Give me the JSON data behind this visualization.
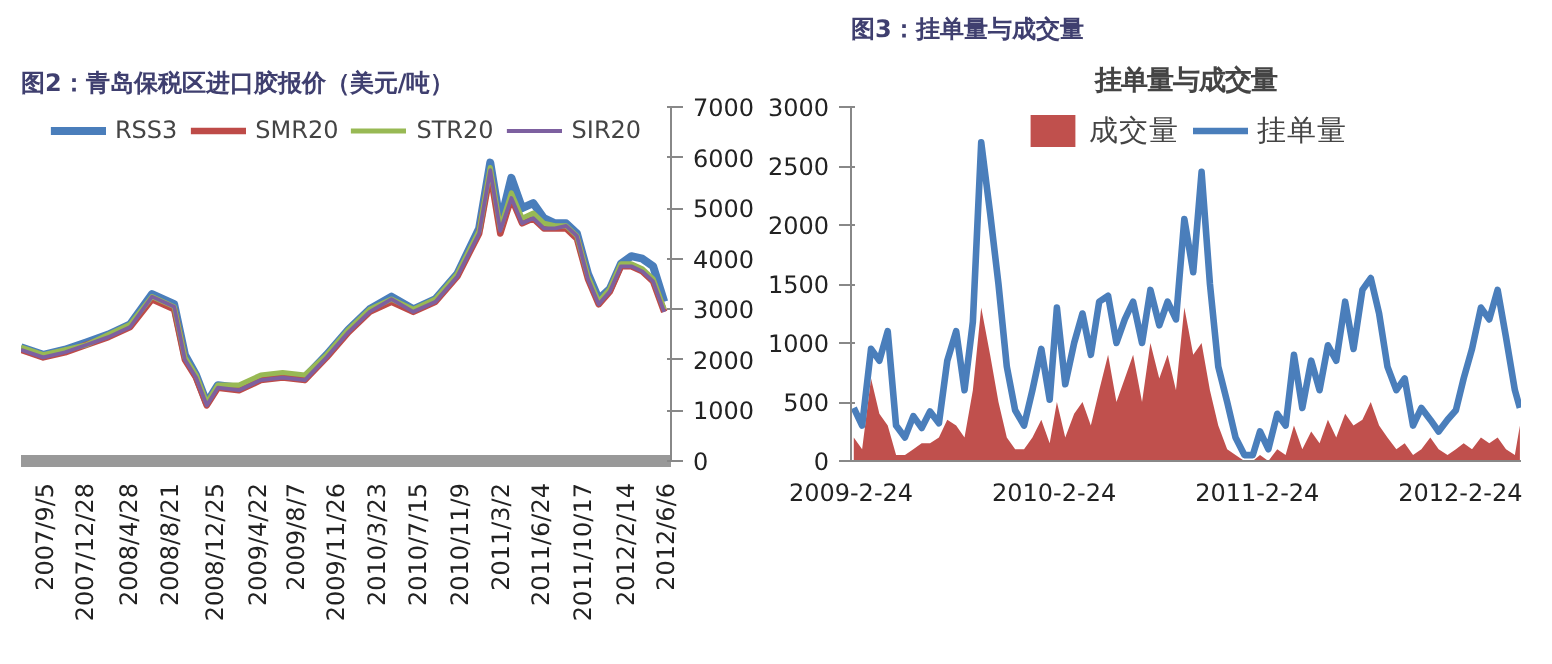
{
  "chart_data": [
    {
      "type": "line",
      "title": "图2：青岛保税区进口胶报价（美元/吨）",
      "legend": "top",
      "grid": false,
      "x": [
        "2007-07-01",
        "2007-09-01",
        "2007-11-01",
        "2008-01-01",
        "2008-03-01",
        "2008-05-01",
        "2008-07-01",
        "2008-09-01",
        "2008-10-01",
        "2008-11-01",
        "2008-12-01",
        "2009-01-01",
        "2009-03-01",
        "2009-05-01",
        "2009-07-01",
        "2009-09-01",
        "2009-11-01",
        "2010-01-01",
        "2010-03-01",
        "2010-05-01",
        "2010-07-01",
        "2010-09-01",
        "2010-11-01",
        "2011-01-01",
        "2011-02-01",
        "2011-03-01",
        "2011-04-01",
        "2011-05-01",
        "2011-06-01",
        "2011-07-01",
        "2011-08-01",
        "2011-09-01",
        "2011-10-01",
        "2011-11-01",
        "2011-12-01",
        "2012-01-01",
        "2012-02-01",
        "2012-03-01",
        "2012-04-01",
        "2012-05-01",
        "2012-06-01"
      ],
      "series": [
        {
          "name": "RSS3",
          "color": "#4a7ebb",
          "values": [
            2250,
            2100,
            2200,
            2350,
            2500,
            2700,
            3300,
            3100,
            2100,
            1700,
            1150,
            1500,
            1450,
            1650,
            1700,
            1650,
            2100,
            2600,
            3000,
            3250,
            3000,
            3200,
            3700,
            4600,
            5900,
            4700,
            5600,
            5000,
            5100,
            4800,
            4700,
            4700,
            4500,
            3700,
            3200,
            3400,
            3900,
            4050,
            4000,
            3850,
            3150
          ]
        },
        {
          "name": "SMR20",
          "color": "#be4b48",
          "values": [
            2200,
            2050,
            2150,
            2300,
            2450,
            2650,
            3200,
            3000,
            2000,
            1650,
            1100,
            1450,
            1400,
            1600,
            1650,
            1600,
            2050,
            2550,
            2950,
            3150,
            2950,
            3150,
            3650,
            4500,
            5700,
            4500,
            5200,
            4700,
            4800,
            4600,
            4600,
            4600,
            4400,
            3600,
            3100,
            3350,
            3850,
            3850,
            3750,
            3550,
            2950
          ]
        },
        {
          "name": "STR20",
          "color": "#98b954",
          "values": [
            2250,
            2100,
            2200,
            2300,
            2500,
            2700,
            3250,
            3050,
            2050,
            1700,
            1150,
            1500,
            1500,
            1700,
            1750,
            1700,
            2100,
            2600,
            3000,
            3200,
            3000,
            3200,
            3700,
            4550,
            5800,
            4600,
            5300,
            4800,
            4900,
            4700,
            4650,
            4650,
            4450,
            3650,
            3150,
            3400,
            3900,
            3900,
            3800,
            3600,
            3000
          ]
        },
        {
          "name": "SIR20",
          "color": "#7d60a0",
          "values": [
            2200,
            2050,
            2150,
            2300,
            2450,
            2650,
            3250,
            3050,
            2000,
            1650,
            1100,
            1450,
            1400,
            1600,
            1650,
            1600,
            2050,
            2550,
            2950,
            3200,
            2950,
            3150,
            3650,
            4500,
            5750,
            4550,
            5200,
            4700,
            4800,
            4600,
            4600,
            4650,
            4450,
            3600,
            3100,
            3350,
            3850,
            3850,
            3750,
            3550,
            2950
          ]
        }
      ],
      "xlim": [
        "2007-07-01",
        "2012-06-20"
      ],
      "ylim": [
        0,
        7000
      ],
      "yticks": [
        0,
        1000,
        2000,
        3000,
        4000,
        5000,
        6000,
        7000
      ],
      "xticks": [
        {
          "value": "2007-09-05",
          "label": "2007/9/5"
        },
        {
          "value": "2007-12-28",
          "label": "2007/12/28"
        },
        {
          "value": "2008-04-28",
          "label": "2008/4/28"
        },
        {
          "value": "2008-08-21",
          "label": "2008/8/21"
        },
        {
          "value": "2008-12-25",
          "label": "2008/12/25"
        },
        {
          "value": "2009-04-22",
          "label": "2009/4/22"
        },
        {
          "value": "2009-08-07",
          "label": "2009/8/7"
        },
        {
          "value": "2009-11-26",
          "label": "2009/11/26"
        },
        {
          "value": "2010-03-23",
          "label": "2010/3/23"
        },
        {
          "value": "2010-07-15",
          "label": "2010/7/15"
        },
        {
          "value": "2010-11-09",
          "label": "2010/11/9"
        },
        {
          "value": "2011-03-02",
          "label": "2011/3/2"
        },
        {
          "value": "2011-06-24",
          "label": "2011/6/24"
        },
        {
          "value": "2011-10-17",
          "label": "2011/10/17"
        },
        {
          "value": "2012-02-14",
          "label": "2012/2/14"
        },
        {
          "value": "2012-06-06",
          "label": "2012/6/6"
        }
      ]
    },
    {
      "type": "line",
      "title": "图3：挂单量与成交量",
      "subtitle": "挂单量与成交量",
      "legend": "top",
      "grid": false,
      "x": [
        "2009-03-01",
        "2009-03-16",
        "2009-04-01",
        "2009-04-16",
        "2009-05-01",
        "2009-05-16",
        "2009-06-01",
        "2009-06-16",
        "2009-07-01",
        "2009-07-16",
        "2009-08-01",
        "2009-08-16",
        "2009-09-01",
        "2009-09-16",
        "2009-10-01",
        "2009-10-16",
        "2009-11-01",
        "2009-11-16",
        "2009-12-01",
        "2009-12-16",
        "2010-01-01",
        "2010-01-16",
        "2010-02-01",
        "2010-02-16",
        "2010-03-01",
        "2010-03-16",
        "2010-04-01",
        "2010-04-16",
        "2010-05-01",
        "2010-05-16",
        "2010-06-01",
        "2010-06-16",
        "2010-07-01",
        "2010-07-16",
        "2010-08-01",
        "2010-08-16",
        "2010-09-01",
        "2010-09-16",
        "2010-10-01",
        "2010-10-16",
        "2010-11-01",
        "2010-11-16",
        "2010-12-01",
        "2010-12-16",
        "2011-01-01",
        "2011-01-16",
        "2011-02-01",
        "2011-02-16",
        "2011-03-01",
        "2011-03-16",
        "2011-04-01",
        "2011-04-16",
        "2011-05-01",
        "2011-05-16",
        "2011-06-01",
        "2011-06-16",
        "2011-07-01",
        "2011-07-16",
        "2011-08-01",
        "2011-08-16",
        "2011-09-01",
        "2011-09-16",
        "2011-10-01",
        "2011-10-16",
        "2011-11-01",
        "2011-11-16",
        "2011-12-01",
        "2011-12-16",
        "2012-01-01",
        "2012-01-16",
        "2012-02-01",
        "2012-02-16",
        "2012-03-01",
        "2012-03-16",
        "2012-04-01",
        "2012-04-16",
        "2012-05-01",
        "2012-05-16",
        "2012-06-01",
        "2012-06-10"
      ],
      "series": [
        {
          "name": "成交量",
          "type": "area",
          "color": "#c0504d",
          "values": [
            200,
            100,
            700,
            400,
            300,
            50,
            50,
            100,
            150,
            150,
            200,
            350,
            300,
            200,
            600,
            1300,
            900,
            500,
            200,
            100,
            100,
            200,
            350,
            150,
            500,
            200,
            400,
            500,
            300,
            600,
            900,
            500,
            700,
            900,
            500,
            1000,
            700,
            900,
            600,
            1300,
            900,
            1000,
            600,
            300,
            100,
            50,
            0,
            0,
            50,
            0,
            100,
            50,
            300,
            100,
            250,
            150,
            350,
            200,
            400,
            300,
            350,
            500,
            300,
            200,
            100,
            150,
            50,
            100,
            200,
            100,
            50,
            100,
            150,
            100,
            200,
            150,
            200,
            100,
            50,
            300
          ]
        },
        {
          "name": "挂单量",
          "type": "line",
          "color": "#4a7ebb",
          "values": [
            450,
            300,
            950,
            850,
            1100,
            300,
            200,
            380,
            280,
            420,
            320,
            850,
            1100,
            600,
            1180,
            2700,
            2100,
            1500,
            800,
            430,
            300,
            600,
            950,
            520,
            1300,
            650,
            1000,
            1250,
            900,
            1350,
            1400,
            1000,
            1200,
            1350,
            1000,
            1450,
            1150,
            1350,
            1200,
            2050,
            1600,
            2450,
            1500,
            800,
            500,
            200,
            50,
            50,
            250,
            100,
            400,
            300,
            900,
            450,
            850,
            600,
            980,
            850,
            1350,
            950,
            1450,
            1550,
            1250,
            800,
            600,
            700,
            300,
            450,
            350,
            250,
            350,
            430,
            700,
            950,
            1300,
            1200,
            1450,
            1050,
            600,
            450
          ]
        }
      ],
      "xlim": [
        "2009-02-24",
        "2012-06-12"
      ],
      "ylim": [
        0,
        3000
      ],
      "yticks": [
        0,
        500,
        1000,
        1500,
        2000,
        2500,
        3000
      ],
      "xticks": [
        {
          "value": "2009-02-24",
          "label": "2009-2-24"
        },
        {
          "value": "2010-02-24",
          "label": "2010-2-24"
        },
        {
          "value": "2011-02-24",
          "label": "2011-2-24"
        },
        {
          "value": "2012-02-24",
          "label": "2012-2-24"
        }
      ]
    }
  ]
}
